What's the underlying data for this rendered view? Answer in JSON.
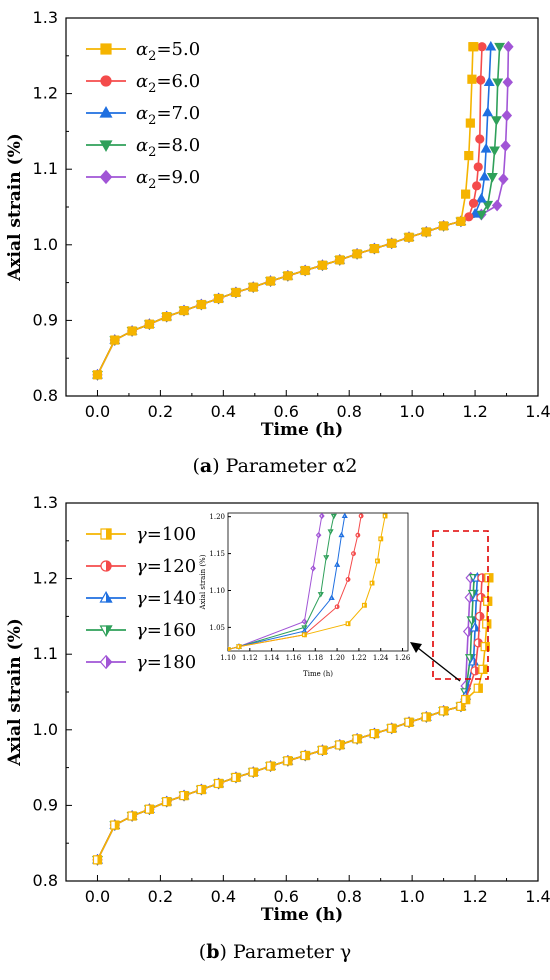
{
  "chart_data": [
    {
      "id": "a",
      "type": "line",
      "caption_label": "a",
      "caption_text": "Parameter α2",
      "xlabel": "Time (h)",
      "ylabel": "Axial strain (%)",
      "xlim": [
        -0.1,
        1.4
      ],
      "ylim": [
        0.8,
        1.3
      ],
      "xticks": [
        0.0,
        0.2,
        0.4,
        0.6,
        0.8,
        1.0,
        1.2,
        1.4
      ],
      "xtick_labels": [
        "0.0",
        "0.2",
        "0.4",
        "0.6",
        "0.8",
        "1.0",
        "1.2",
        "1.4"
      ],
      "yticks": [
        0.8,
        0.9,
        1.0,
        1.1,
        1.2,
        1.3
      ],
      "ytick_labels": [
        "0.8",
        "0.9",
        "1.0",
        "1.1",
        "1.2",
        "1.3"
      ],
      "legend_position": "top-left",
      "grid": false,
      "common": {
        "x": [
          0.0,
          0.055,
          0.11,
          0.165,
          0.22,
          0.275,
          0.33,
          0.385,
          0.44,
          0.495,
          0.55,
          0.605,
          0.66,
          0.715,
          0.77,
          0.825,
          0.88,
          0.935,
          0.99,
          1.045,
          1.1,
          1.155
        ],
        "y": [
          0.828,
          0.874,
          0.886,
          0.895,
          0.905,
          0.913,
          0.921,
          0.929,
          0.937,
          0.944,
          0.952,
          0.959,
          0.966,
          0.973,
          0.98,
          0.988,
          0.995,
          1.002,
          1.01,
          1.017,
          1.025,
          1.031
        ]
      },
      "series": [
        {
          "name": "α2=5.0",
          "label_main": "α",
          "label_sub": "2",
          "label_rest": "=5.0",
          "color": "#f5b400",
          "marker": "square",
          "tail_x": [
            1.17,
            1.18,
            1.185,
            1.19,
            1.193,
            1.196
          ],
          "tail_y": [
            1.067,
            1.118,
            1.161,
            1.219,
            1.262,
            1.262
          ]
        },
        {
          "name": "α2=6.0",
          "label_main": "α",
          "label_sub": "2",
          "label_rest": "=6.0",
          "color": "#f44b4b",
          "marker": "circle",
          "tail_x": [
            1.18,
            1.195,
            1.205,
            1.21,
            1.215,
            1.218,
            1.222
          ],
          "tail_y": [
            1.037,
            1.055,
            1.078,
            1.103,
            1.14,
            1.218,
            1.262
          ]
        },
        {
          "name": "α2=7.0",
          "label_main": "α",
          "label_sub": "2",
          "label_rest": "=7.0",
          "color": "#1f6fe0",
          "marker": "triangle-up",
          "tail_x": [
            1.2,
            1.22,
            1.23,
            1.235,
            1.24,
            1.245,
            1.25
          ],
          "tail_y": [
            1.041,
            1.061,
            1.09,
            1.127,
            1.175,
            1.215,
            1.262
          ]
        },
        {
          "name": "α2=8.0",
          "label_main": "α",
          "label_sub": "2",
          "label_rest": "=8.0",
          "color": "#2fa05a",
          "marker": "triangle-down",
          "tail_x": [
            1.22,
            1.24,
            1.255,
            1.262,
            1.268,
            1.272,
            1.278
          ],
          "tail_y": [
            1.04,
            1.053,
            1.09,
            1.125,
            1.165,
            1.215,
            1.262
          ]
        },
        {
          "name": "α2=9.0",
          "label_main": "α",
          "label_sub": "2",
          "label_rest": "=9.0",
          "color": "#a155d6",
          "marker": "diamond",
          "tail_x": [
            1.22,
            1.27,
            1.29,
            1.297,
            1.301,
            1.304,
            1.306
          ],
          "tail_y": [
            1.04,
            1.052,
            1.087,
            1.131,
            1.171,
            1.215,
            1.262
          ]
        }
      ]
    },
    {
      "id": "b",
      "type": "line",
      "caption_label": "b",
      "caption_text": "Parameter γ",
      "xlabel": "Time (h)",
      "ylabel": "Axial strain (%)",
      "xlim": [
        -0.1,
        1.4
      ],
      "ylim": [
        0.8,
        1.3
      ],
      "xticks": [
        0.0,
        0.2,
        0.4,
        0.6,
        0.8,
        1.0,
        1.2,
        1.4
      ],
      "xtick_labels": [
        "0.0",
        "0.2",
        "0.4",
        "0.6",
        "0.8",
        "1.0",
        "1.2",
        "1.4"
      ],
      "yticks": [
        0.8,
        0.9,
        1.0,
        1.1,
        1.2,
        1.3
      ],
      "ytick_labels": [
        "0.8",
        "0.9",
        "1.0",
        "1.1",
        "1.2",
        "1.3"
      ],
      "legend_position": "top-left",
      "grid": false,
      "common": {
        "x": [
          0.0,
          0.055,
          0.11,
          0.165,
          0.22,
          0.275,
          0.33,
          0.385,
          0.44,
          0.495,
          0.55,
          0.605,
          0.66,
          0.715,
          0.77,
          0.825,
          0.88,
          0.935,
          0.99,
          1.045,
          1.1,
          1.155
        ],
        "y": [
          0.828,
          0.874,
          0.886,
          0.895,
          0.905,
          0.913,
          0.921,
          0.929,
          0.937,
          0.944,
          0.952,
          0.959,
          0.966,
          0.973,
          0.98,
          0.988,
          0.995,
          1.002,
          1.01,
          1.017,
          1.025,
          1.031
        ]
      },
      "series": [
        {
          "name": "γ=100",
          "label_main": "γ",
          "label_sub": "",
          "label_rest": "=100",
          "color": "#f5b400",
          "marker": "square-half",
          "tail_x": [
            1.17,
            1.21,
            1.225,
            1.232,
            1.237,
            1.24,
            1.244
          ],
          "tail_y": [
            1.04,
            1.055,
            1.08,
            1.11,
            1.14,
            1.17,
            1.201
          ]
        },
        {
          "name": "γ=120",
          "label_main": "γ",
          "label_sub": "",
          "label_rest": "=120",
          "color": "#f44b4b",
          "marker": "circle-half",
          "tail_x": [
            1.17,
            1.2,
            1.21,
            1.215,
            1.219,
            1.222
          ],
          "tail_y": [
            1.04,
            1.078,
            1.115,
            1.15,
            1.175,
            1.201
          ]
        },
        {
          "name": "γ=140",
          "label_main": "γ",
          "label_sub": "",
          "label_rest": "=140",
          "color": "#1f6fe0",
          "marker": "triangle-up-half",
          "tail_x": [
            1.17,
            1.195,
            1.2,
            1.204,
            1.207
          ],
          "tail_y": [
            1.045,
            1.09,
            1.135,
            1.175,
            1.201
          ]
        },
        {
          "name": "γ=160",
          "label_main": "γ",
          "label_sub": "",
          "label_rest": "=160",
          "color": "#2fa05a",
          "marker": "triangle-down-half",
          "tail_x": [
            1.17,
            1.185,
            1.19,
            1.194,
            1.197
          ],
          "tail_y": [
            1.05,
            1.095,
            1.145,
            1.18,
            1.201
          ]
        },
        {
          "name": "γ=180",
          "label_main": "γ",
          "label_sub": "",
          "label_rest": "=180",
          "color": "#a155d6",
          "marker": "diamond-half",
          "tail_x": [
            1.17,
            1.178,
            1.183,
            1.186
          ],
          "tail_y": [
            1.058,
            1.13,
            1.175,
            1.201
          ]
        }
      ],
      "inset": {
        "xlim": [
          1.1,
          1.265
        ],
        "ylim": [
          1.018,
          1.205
        ],
        "xticks": [
          1.1,
          1.12,
          1.14,
          1.16,
          1.18,
          1.2,
          1.22,
          1.24,
          1.26
        ],
        "xtick_labels": [
          "1.10",
          "1.12",
          "1.14",
          "1.16",
          "1.18",
          "1.20",
          "1.22",
          "1.24",
          "1.26"
        ],
        "yticks": [
          1.05,
          1.1,
          1.15,
          1.2
        ],
        "ytick_labels": [
          "1.05",
          "1.10",
          "1.15",
          "1.20"
        ],
        "xlabel": "Time (h)",
        "ylabel": "Axial strain (%)",
        "base_x": [
          1.1,
          1.11
        ],
        "base_y": [
          1.02,
          1.024
        ]
      }
    }
  ]
}
